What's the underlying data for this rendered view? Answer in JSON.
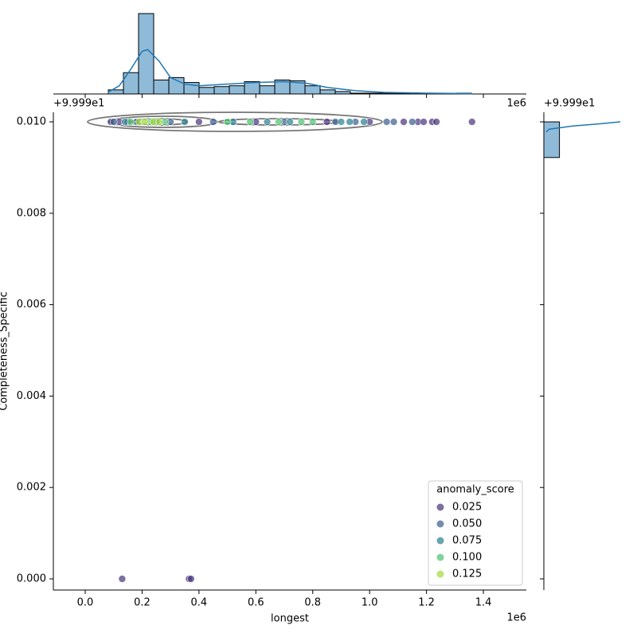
{
  "chart_data": [
    {
      "type": "scatter",
      "x_label": "longest",
      "y_label": "Completeness_Specific",
      "x_offset_label": "1e6",
      "y_offset_label": "+9.999e1",
      "xlim": [
        -112000,
        1551000
      ],
      "ylim": [
        -0.000244,
        0.01021
      ],
      "xticks": [
        {
          "value": 0,
          "label": "0.0"
        },
        {
          "value": 200000,
          "label": "0.2"
        },
        {
          "value": 400000,
          "label": "0.4"
        },
        {
          "value": 600000,
          "label": "0.6"
        },
        {
          "value": 800000,
          "label": "0.8"
        },
        {
          "value": 1000000,
          "label": "1.0"
        },
        {
          "value": 1200000,
          "label": "1.2"
        },
        {
          "value": 1400000,
          "label": "1.4"
        }
      ],
      "yticks": [
        {
          "value": 0,
          "label": "0.000"
        },
        {
          "value": 0.002,
          "label": "0.002"
        },
        {
          "value": 0.004,
          "label": "0.004"
        },
        {
          "value": 0.006,
          "label": "0.006"
        },
        {
          "value": 0.008,
          "label": "0.008"
        },
        {
          "value": 0.01,
          "label": "0.010"
        }
      ],
      "legend_title": "anomaly_score",
      "legend_position": "lower right",
      "series": [
        {
          "name": "0.025",
          "color": "#46327e",
          "x": [
            90000,
            120000,
            150000,
            400000,
            600000,
            850000,
            1000000,
            1120000,
            1170000,
            1190000,
            1220000,
            1235000,
            1360000,
            130000,
            365000,
            372000
          ],
          "y": [
            0.01,
            0.01,
            0.01,
            0.01,
            0.01,
            0.01,
            0.01,
            0.01,
            0.01,
            0.01,
            0.01,
            0.01,
            0.01,
            0,
            0,
            0
          ]
        },
        {
          "name": "0.050",
          "color": "#365c8d",
          "x": [
            100000,
            180000,
            300000,
            450000,
            700000,
            880000,
            950000,
            1060000,
            1085000,
            1150000
          ],
          "y": [
            0.01,
            0.01,
            0.01,
            0.01,
            0.01,
            0.01,
            0.01,
            0.01,
            0.01,
            0.01
          ]
        },
        {
          "name": "0.075",
          "color": "#277f8e",
          "x": [
            140000,
            250000,
            350000,
            520000,
            640000,
            720000,
            900000,
            930000,
            980000
          ],
          "y": [
            0.01,
            0.01,
            0.01,
            0.01,
            0.01,
            0.01,
            0.01,
            0.01,
            0.01
          ]
        },
        {
          "name": "0.100",
          "color": "#4ac16d",
          "x": [
            160000,
            230000,
            280000,
            500000,
            580000,
            680000,
            760000,
            800000
          ],
          "y": [
            0.01,
            0.01,
            0.01,
            0.01,
            0.01,
            0.01,
            0.01,
            0.01
          ]
        },
        {
          "name": "0.125",
          "color": "#a0da39",
          "x": [
            190000,
            210000,
            240000,
            260000
          ],
          "y": [
            0.01,
            0.01,
            0.01,
            0.01
          ]
        }
      ]
    },
    {
      "type": "histogram",
      "orientation": "vertical",
      "color": "#1f77b4",
      "ylim": [
        0,
        100
      ],
      "bins": [
        81200,
        134400,
        187600,
        240800,
        294000,
        347200,
        400400,
        453600,
        506800,
        560000,
        613200,
        666400,
        719600,
        772800,
        826000,
        879200,
        932400,
        985600,
        1038800,
        1092000,
        1145200,
        1198400,
        1251600,
        1304800,
        1358000
      ],
      "counts": [
        5,
        26,
        98,
        17,
        20,
        14,
        8,
        9,
        10,
        15,
        10,
        17,
        16,
        10,
        5,
        3,
        1,
        1,
        1,
        1,
        0,
        0,
        0,
        1
      ],
      "kde": {
        "x": [
          80000,
          120000,
          160000,
          200000,
          220000,
          260000,
          300000,
          350000,
          400000,
          500000,
          600000,
          700000,
          780000,
          850000,
          950000,
          1050000,
          1200000,
          1360000
        ],
        "y": [
          2,
          10,
          30,
          52,
          54,
          40,
          20,
          12,
          10,
          12,
          14,
          15,
          13,
          8,
          4,
          2,
          1,
          0.5
        ]
      }
    },
    {
      "type": "histogram",
      "orientation": "horizontal",
      "color": "#1f77b4",
      "y_offset_label": "+9.999e1",
      "xlim": [
        0,
        100
      ],
      "bins": [
        0.00922,
        0.01
      ],
      "counts": [
        20
      ],
      "kde": {
        "y": [
          0.00978,
          0.00984,
          0.00991,
          0.00995,
          0.01
        ],
        "x": [
          3,
          7,
          37,
          67,
          98
        ]
      }
    }
  ]
}
